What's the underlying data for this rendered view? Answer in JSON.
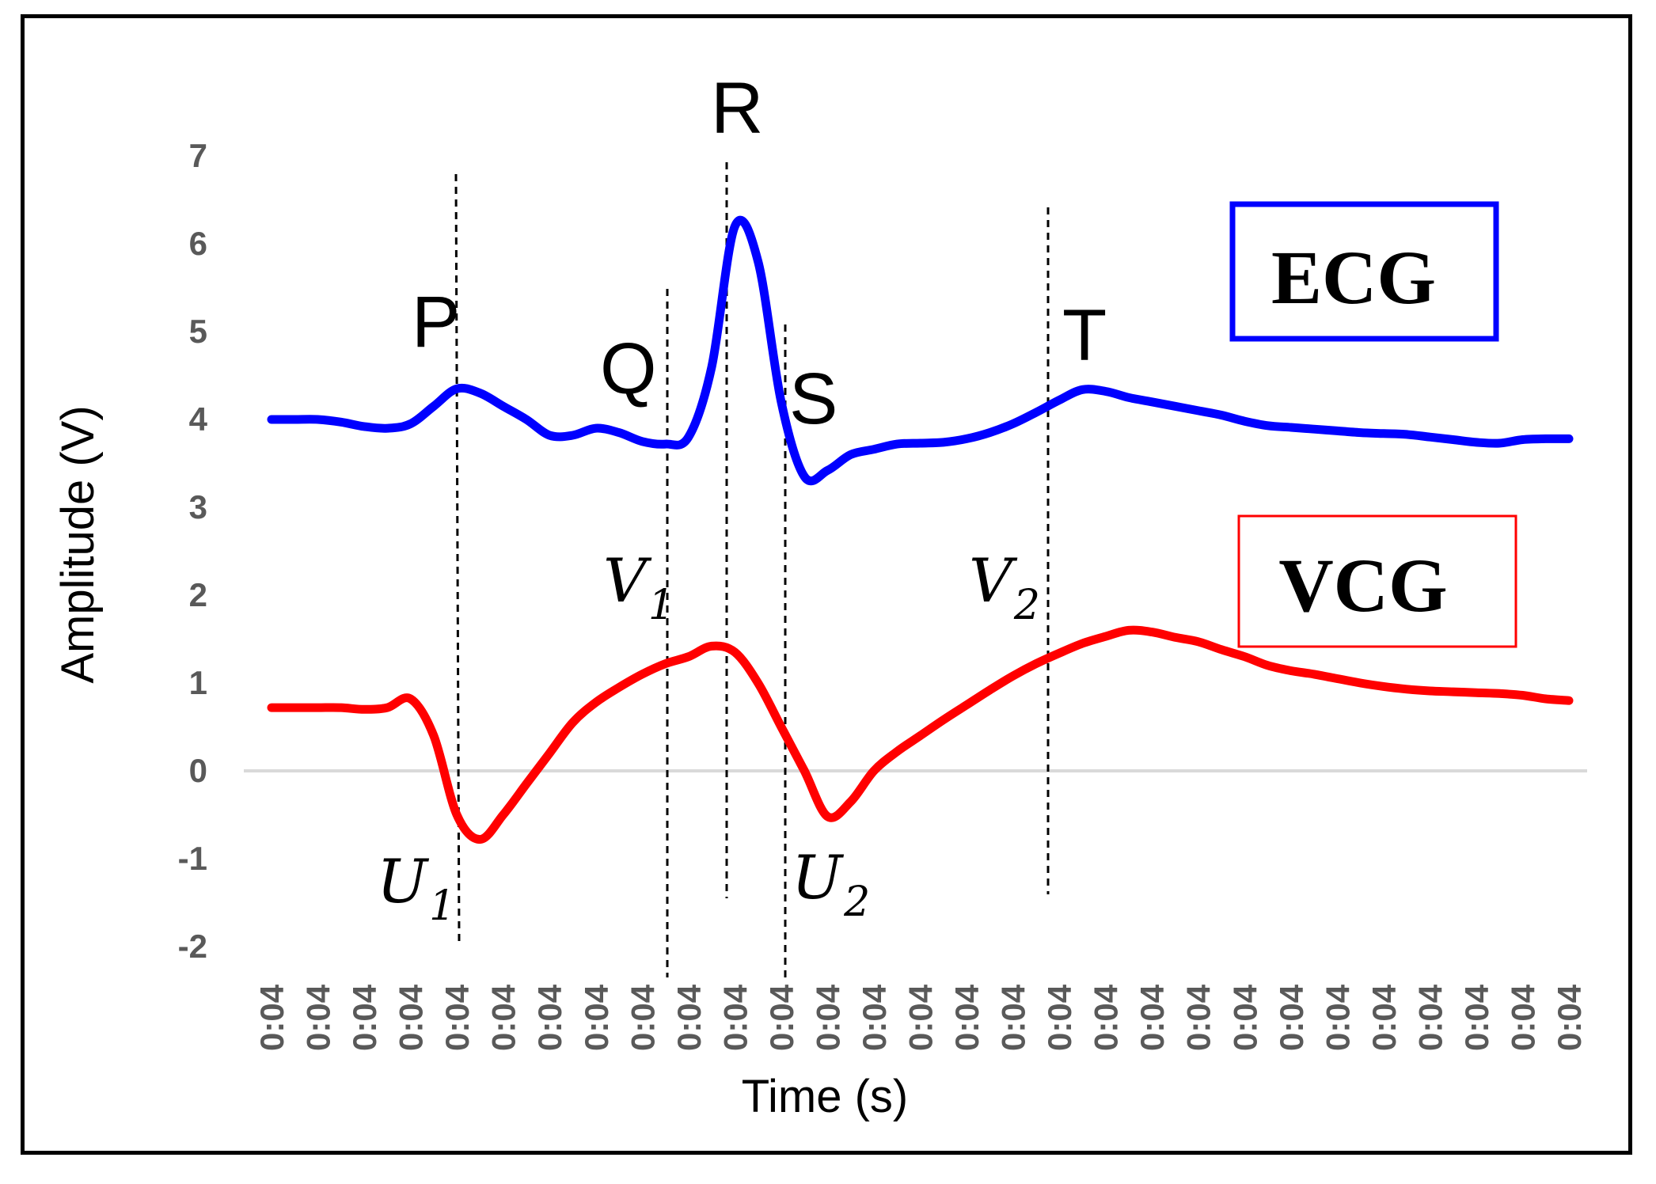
{
  "chart_data": {
    "type": "line",
    "title": "",
    "xlabel": "Time (s)",
    "ylabel": "Amplitude (V)",
    "ylim": [
      -2,
      7
    ],
    "yticks": [
      7,
      6,
      5,
      4,
      3,
      2,
      1,
      0,
      -1,
      -2
    ],
    "xtick_labels": [
      "0:04",
      "0:04",
      "0:04",
      "0:04",
      "0:04",
      "0:04",
      "0:04",
      "0:04",
      "0:04",
      "0:04",
      "0:04",
      "0:04",
      "0:04",
      "0:04",
      "0:04",
      "0:04",
      "0:04",
      "0:04",
      "0:04",
      "0:04",
      "0:04",
      "0:04",
      "0:04",
      "0:04",
      "0:04",
      "0:04",
      "0:04",
      "0:04",
      "0:04"
    ],
    "x": [
      0,
      0.5,
      1,
      1.5,
      2,
      2.5,
      3,
      3.5,
      4,
      4.5,
      5,
      5.5,
      6,
      6.5,
      7,
      7.5,
      8,
      8.5,
      9,
      9.5,
      10,
      10.5,
      11,
      11.5,
      12,
      12.5,
      13,
      13.5,
      14,
      14.5,
      15,
      15.5,
      16,
      16.5,
      17,
      17.5,
      18,
      18.5,
      19,
      19.5,
      20,
      20.5,
      21,
      21.5,
      22,
      22.5,
      23,
      23.5,
      24,
      24.5,
      25,
      25.5,
      26,
      26.5,
      27,
      27.5,
      28
    ],
    "series": [
      {
        "name": "ECG",
        "color": "#0000ff",
        "values": [
          4.0,
          4.0,
          4.0,
          3.97,
          3.92,
          3.9,
          3.95,
          4.15,
          4.35,
          4.3,
          4.15,
          4.0,
          3.82,
          3.82,
          3.9,
          3.85,
          3.75,
          3.72,
          3.8,
          4.6,
          6.2,
          5.8,
          4.2,
          3.35,
          3.42,
          3.6,
          3.66,
          3.72,
          3.73,
          3.74,
          3.78,
          3.85,
          3.95,
          4.08,
          4.22,
          4.34,
          4.32,
          4.25,
          4.2,
          4.15,
          4.1,
          4.05,
          3.98,
          3.93,
          3.91,
          3.89,
          3.87,
          3.85,
          3.84,
          3.83,
          3.8,
          3.77,
          3.74,
          3.73,
          3.77,
          3.78,
          3.78
        ]
      },
      {
        "name": "VCG",
        "color": "#ff0000",
        "values": [
          0.72,
          0.72,
          0.72,
          0.72,
          0.7,
          0.72,
          0.82,
          0.4,
          -0.5,
          -0.78,
          -0.5,
          -0.15,
          0.2,
          0.55,
          0.78,
          0.95,
          1.1,
          1.22,
          1.3,
          1.42,
          1.35,
          1.0,
          0.5,
          0.0,
          -0.52,
          -0.35,
          0.0,
          0.22,
          0.4,
          0.58,
          0.75,
          0.92,
          1.08,
          1.22,
          1.34,
          1.45,
          1.53,
          1.6,
          1.58,
          1.52,
          1.47,
          1.38,
          1.3,
          1.2,
          1.14,
          1.1,
          1.05,
          1.0,
          0.96,
          0.93,
          0.91,
          0.9,
          0.89,
          0.88,
          0.86,
          0.82,
          0.8
        ]
      }
    ],
    "legend": [
      "ECG",
      "VCG"
    ],
    "legend_placement": "right",
    "grid": false,
    "wave_labels": [
      {
        "text": "P",
        "x": 4.1
      },
      {
        "text": "Q",
        "x": 8.5
      },
      {
        "text": "R",
        "x": 10.1
      },
      {
        "text": "S",
        "x": 12.0
      },
      {
        "text": "T",
        "x": 18.1
      }
    ],
    "point_labels": [
      {
        "name": "U1",
        "letter": "U",
        "sub": "1",
        "x": 4.1
      },
      {
        "name": "V1",
        "letter": "V",
        "sub": "1",
        "x": 8.5
      },
      {
        "name": "U2",
        "letter": "U",
        "sub": "2",
        "x": 11.8
      },
      {
        "name": "V2",
        "letter": "V",
        "sub": "2",
        "x": 17.5
      }
    ]
  }
}
